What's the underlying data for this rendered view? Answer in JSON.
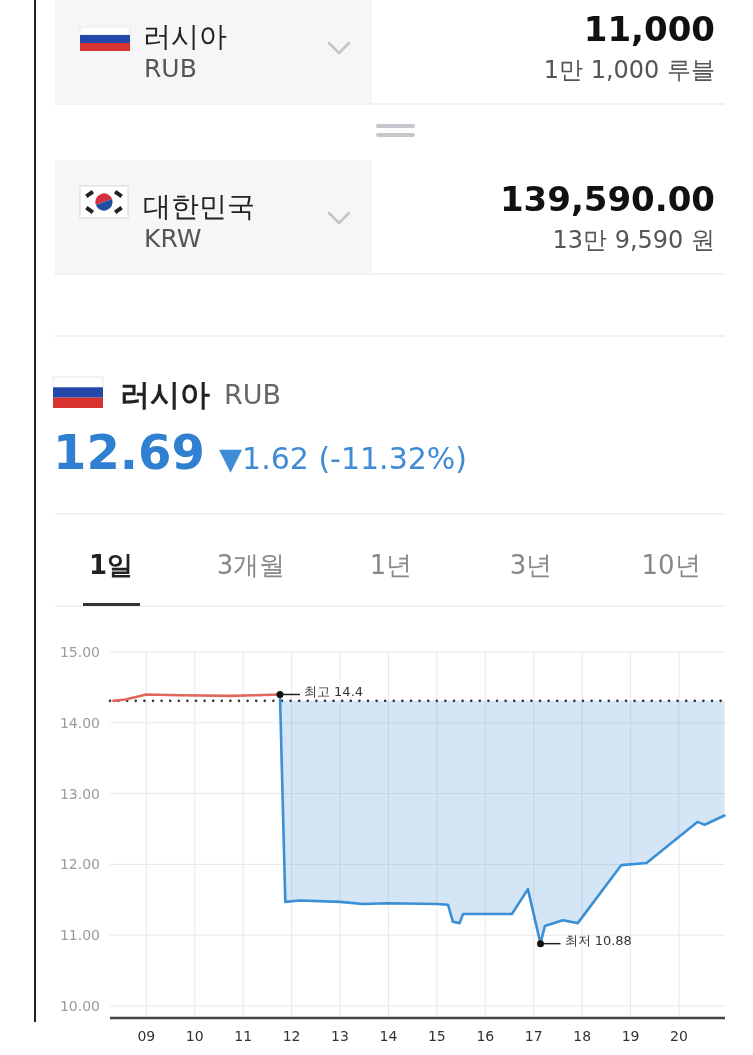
{
  "chart_data": [
    {
      "type": "other",
      "annotations": [
        "러시아",
        "RUB",
        "11,000",
        "1만 1,000 루블",
        "대한민국",
        "KRW",
        "139,590.00",
        "13만 9,590 원"
      ]
    },
    {
      "type": "line",
      "title": "러시아",
      "subtitle": "RUB",
      "annotations": [
        "12.69",
        "▼1.62 (-11.32%)",
        "1일",
        "3개월",
        "1년",
        "3년",
        "10년",
        {
          "text": "최고 14.4",
          "x": 11.76,
          "y": 14.4
        },
        {
          "text": "최저 10.88",
          "x": 17.14,
          "y": 10.88
        }
      ],
      "xlim": [
        8.25,
        20.95
      ],
      "ylim": [
        9.83,
        15
      ],
      "xticks": [
        {
          "value": 9,
          "label": "09"
        },
        10,
        11,
        12,
        13,
        14,
        15,
        16,
        17,
        18,
        19,
        20
      ],
      "yticks": [
        {
          "value": 10,
          "label": "10.00"
        },
        {
          "value": 11,
          "label": "11.00"
        },
        {
          "value": 12,
          "label": "12.00"
        },
        {
          "value": 13,
          "label": "13.00"
        },
        {
          "value": 14,
          "label": "14.00"
        },
        {
          "value": 15,
          "label": "15.00"
        }
      ],
      "grid": true,
      "ref_lines": [
        {
          "axis": "y",
          "value": 14.31,
          "line_style": "dotted",
          "color": "#333333"
        }
      ],
      "series": [
        {
          "type": "line",
          "color": "#e0675c",
          "x": [
            8.32,
            8.57,
            9.0,
            9.7,
            10.73,
            11.25,
            11.76
          ],
          "values": [
            14.31,
            14.33,
            14.4,
            14.39,
            14.38,
            14.39,
            14.4
          ]
        },
        {
          "type": "line",
          "color": "#3b8fd4",
          "x": [
            11.76,
            11.87,
            12.18,
            13.0,
            13.47,
            13.99,
            15.0,
            15.23,
            15.33,
            15.47,
            15.54,
            16.09,
            16.55,
            16.88,
            17.14,
            17.23,
            17.6,
            17.91,
            18.81,
            19.33,
            20.38,
            20.53,
            20.94
          ],
          "values": [
            14.4,
            11.47,
            11.49,
            11.47,
            11.44,
            11.45,
            11.44,
            11.43,
            11.19,
            11.17,
            11.3,
            11.3,
            11.3,
            11.65,
            10.88,
            11.13,
            11.21,
            11.17,
            11.99,
            12.02,
            12.6,
            12.56,
            12.69
          ],
          "lower": [
            14.4,
            11.47,
            11.49,
            11.47,
            11.44,
            11.45,
            11.44,
            11.43,
            11.19,
            11.17,
            11.3,
            11.3,
            11.3,
            11.65,
            10.88,
            11.13,
            11.21,
            11.17,
            11.99,
            12.02,
            12.6,
            12.56,
            12.69
          ],
          "upper": [
            14.31,
            14.31,
            14.31,
            14.31,
            14.31,
            14.31,
            14.31,
            14.31,
            14.31,
            14.31,
            14.31,
            14.31,
            14.31,
            14.31,
            14.31,
            14.31,
            14.31,
            14.31,
            14.31,
            14.31,
            14.31,
            14.31,
            14.31
          ]
        }
      ]
    }
  ]
}
